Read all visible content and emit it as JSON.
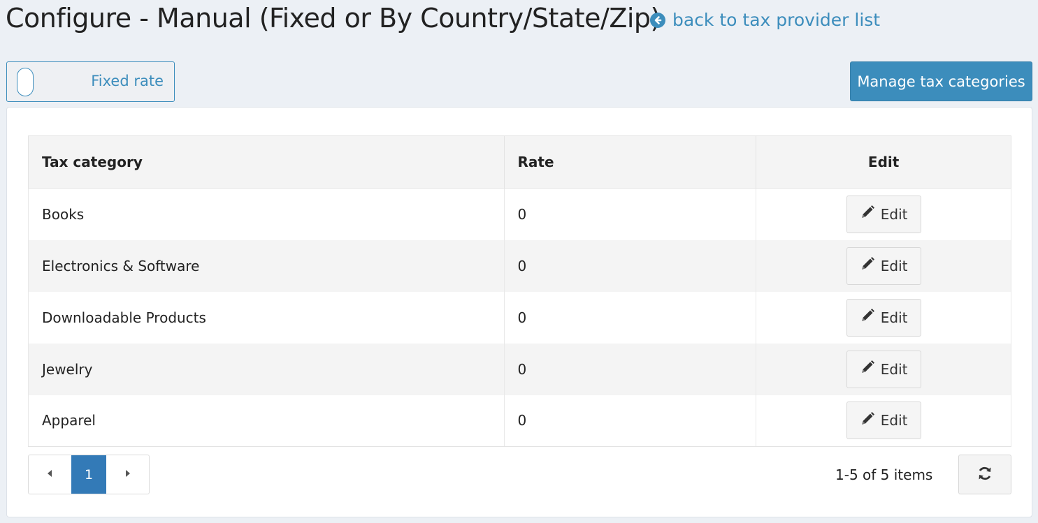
{
  "header": {
    "title": "Configure - Manual (Fixed or By Country/State/Zip)",
    "back_link": "back to tax provider list"
  },
  "toolbar": {
    "toggle_label": "Fixed rate",
    "manage_button": "Manage tax categories"
  },
  "table": {
    "columns": [
      "Tax category",
      "Rate",
      "Edit"
    ],
    "rows": [
      {
        "category": "Books",
        "rate": "0",
        "edit": "Edit"
      },
      {
        "category": "Electronics & Software",
        "rate": "0",
        "edit": "Edit"
      },
      {
        "category": "Downloadable Products",
        "rate": "0",
        "edit": "Edit"
      },
      {
        "category": "Jewelry",
        "rate": "0",
        "edit": "Edit"
      },
      {
        "category": "Apparel",
        "rate": "0",
        "edit": "Edit"
      }
    ]
  },
  "pager": {
    "current_page": "1",
    "items_info": "1-5 of 5 items"
  },
  "colors": {
    "accent": "#3c8dbc",
    "page_active": "#337ab7",
    "background": "#ecf0f5"
  }
}
